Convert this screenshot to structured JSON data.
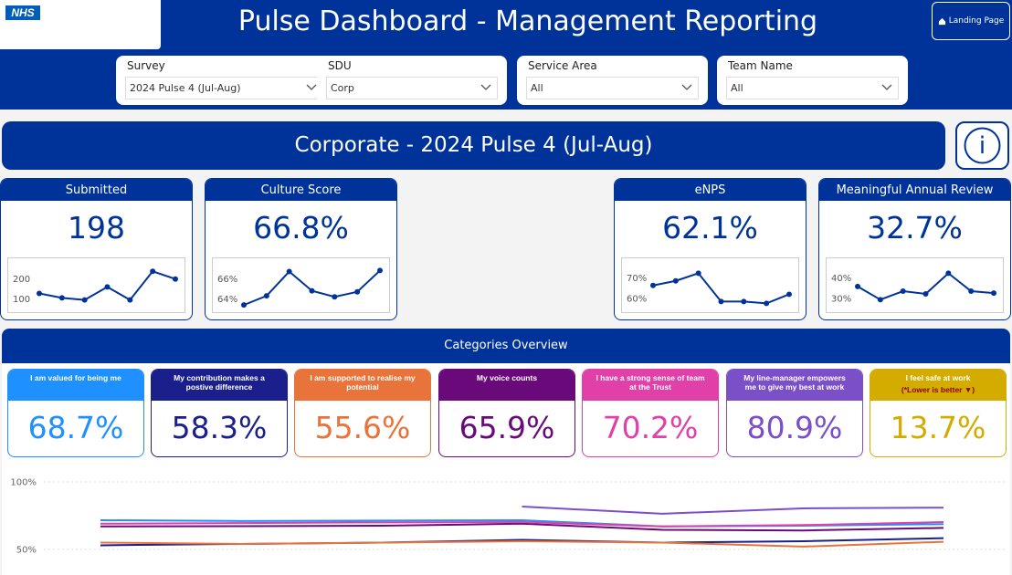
{
  "header": {
    "logo": "NHS",
    "title": "Pulse Dashboard - Management Reporting",
    "landing_button": "Landing Page"
  },
  "filters": [
    {
      "label": "Survey",
      "value": "2024 Pulse 4 (Jul-Aug)"
    },
    {
      "label": "SDU",
      "value": "Corp"
    },
    {
      "label": "Service Area",
      "value": "All"
    },
    {
      "label": "Team Name",
      "value": "All"
    }
  ],
  "banner": "Corporate - 2024 Pulse 4 (Jul-Aug)",
  "info_icon": "i",
  "kpis": [
    {
      "title": "Submitted",
      "value": "198",
      "spark": {
        "type": "line",
        "values": [
          127,
          105,
          95,
          159,
          95,
          236,
          198
        ],
        "ylim": [
          30,
          305
        ],
        "yticks": [
          100,
          200
        ],
        "color": "#003399"
      }
    },
    {
      "title": "Culture Score",
      "value": "66.8%",
      "spark": {
        "type": "line",
        "values": [
          63.4,
          64.3,
          66.7,
          64.8,
          64.2,
          64.7,
          66.8
        ],
        "ylim": [
          62.6,
          68.1
        ],
        "yticks": [
          {
            "value": 64,
            "label": "64%"
          },
          {
            "value": 66,
            "label": "66%"
          }
        ],
        "color": "#003399"
      }
    },
    {
      "title": "eNPS",
      "value": "62.1%",
      "spark": {
        "type": "line",
        "values": [
          66.4,
          68.6,
          72.3,
          58.6,
          58.6,
          57.7,
          62.1
        ],
        "ylim": [
          53,
          80
        ],
        "yticks": [
          {
            "value": 60,
            "label": "60%"
          },
          {
            "value": 70,
            "label": "70%"
          }
        ],
        "color": "#003399"
      }
    },
    {
      "title": "Meaningful Annual Review",
      "value": "32.7%",
      "spark": {
        "type": "line",
        "values": [
          35.9,
          29.5,
          33.6,
          32.3,
          42.3,
          33.6,
          32.7
        ],
        "ylim": [
          23,
          50
        ],
        "yticks": [
          {
            "value": 30,
            "label": "30%"
          },
          {
            "value": 40,
            "label": "40%"
          }
        ],
        "color": "#003399"
      }
    }
  ],
  "categories_overview": {
    "title": "Categories Overview",
    "cards": [
      {
        "title": "I am valued for being me",
        "value": "68.7%",
        "color": "#1e90ff"
      },
      {
        "title": "My contribution makes a postive difference",
        "value": "58.3%",
        "color": "#1a1f8c"
      },
      {
        "title": "I am supported to realise my potential",
        "value": "55.6%",
        "color": "#e8743b"
      },
      {
        "title": "My voice counts",
        "value": "65.9%",
        "color": "#6a0a7a"
      },
      {
        "title": "I have a strong sense of team at the Trust",
        "value": "70.2%",
        "color": "#e040a8"
      },
      {
        "title": "My line-manager empowers me to give my best at work",
        "value": "80.9%",
        "color": "#7b4fc8"
      },
      {
        "title": "I feel safe at work",
        "note": "(*Lower is better ▼)",
        "value": "13.7%",
        "color": "#d4ac00"
      }
    ]
  },
  "chart_data": {
    "type": "line",
    "categories": [
      null,
      null,
      null,
      null,
      null,
      null,
      null
    ],
    "ylim": [
      33,
      100
    ],
    "yticks": [
      {
        "value": 50,
        "label": "50%"
      },
      {
        "value": 100,
        "label": "100%"
      }
    ],
    "grid": true,
    "series": [
      {
        "color": "#1e90ff",
        "values": [
          71.6,
          71,
          71.3,
          71.6,
          67,
          67.5,
          68.7
        ]
      },
      {
        "color": "#1a1f8c",
        "values": [
          53,
          54,
          55,
          57,
          55,
          56,
          58.3
        ]
      },
      {
        "color": "#e8743b",
        "values": [
          55,
          54,
          55,
          56,
          55,
          52,
          55.6
        ]
      },
      {
        "color": "#6a0a7a",
        "values": [
          67,
          67.2,
          67.5,
          69,
          64.5,
          64,
          65.9
        ]
      },
      {
        "color": "#e040a8",
        "values": [
          69,
          69.5,
          70,
          70.2,
          67,
          68,
          70.2
        ]
      },
      {
        "color": "#7b4fc8",
        "values": [
          null,
          null,
          null,
          81.7,
          76.4,
          80.4,
          80.9
        ]
      }
    ]
  }
}
